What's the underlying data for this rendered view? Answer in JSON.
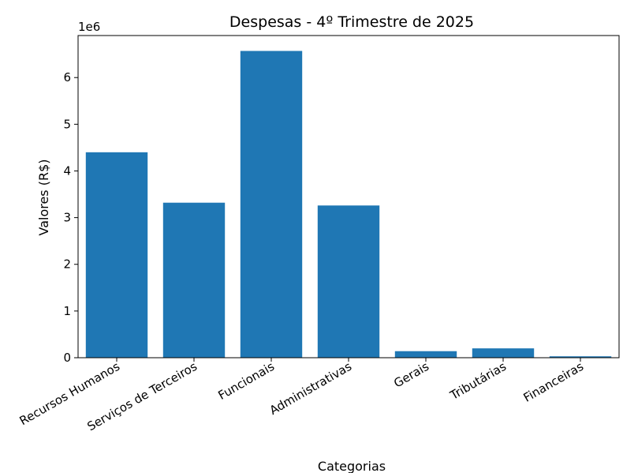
{
  "chart_data": {
    "type": "bar",
    "title": "Despesas - 4º Trimestre de 2025",
    "xlabel": "Categorias",
    "ylabel": "Valores (R$)",
    "y_multiplier": "1e6",
    "categories": [
      "Recursos Humanos",
      "Serviços de Terceiros",
      "Funcionais",
      "Administrativas",
      "Gerais",
      "Tributárias",
      "Financeiras"
    ],
    "values": [
      4400000,
      3320000,
      6570000,
      3260000,
      140000,
      200000,
      30000
    ],
    "ylim": [
      0,
      6900000
    ],
    "yticks": [
      0,
      1,
      2,
      3,
      4,
      5,
      6
    ],
    "bar_color": "#1f77b4",
    "grid": false,
    "legend": "none"
  }
}
